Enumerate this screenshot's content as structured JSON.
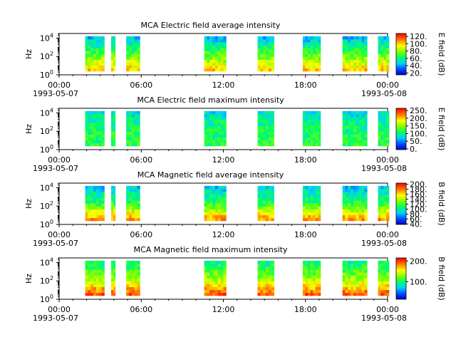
{
  "chart_data": [
    {
      "type": "heatmap",
      "title": "MCA  Electric field average intensity",
      "ylabel": "Hz",
      "colorbar_label": "E field (dB)",
      "colorbar_ticks": [
        "20.",
        "40.",
        "60.",
        "80.",
        "100.",
        "120."
      ],
      "colorbar_range": [
        15,
        128
      ],
      "xticks": [
        [
          "00:00",
          "1993-05-07"
        ],
        [
          "06:00",
          ""
        ],
        [
          "12:00",
          ""
        ],
        [
          "18:00",
          ""
        ],
        [
          "00:00",
          "1993-05-08"
        ]
      ],
      "ytick_exponents": [
        "0",
        "2",
        "4"
      ],
      "x_range_hours": [
        0,
        24
      ],
      "y_range_log10_hz": [
        0,
        4.5
      ],
      "data_intervals_hours": [
        [
          1.9,
          3.3
        ],
        [
          3.8,
          4.1
        ],
        [
          4.9,
          5.9
        ],
        [
          10.6,
          12.2
        ],
        [
          14.5,
          15.7
        ],
        [
          17.8,
          19.1
        ],
        [
          20.7,
          22.5
        ],
        [
          23.3,
          24.1
        ]
      ],
      "freq_range_log10_hz": [
        0.4,
        4.2
      ],
      "intensity_profile": {
        "low_freq": 100,
        "mid_freq": 72,
        "high_freq": 45
      }
    },
    {
      "type": "heatmap",
      "title": "MCA  Electric field maximum intensity",
      "ylabel": "Hz",
      "colorbar_label": "E field (dB)",
      "colorbar_ticks": [
        "0.",
        "50.",
        "100.",
        "150.",
        "200.",
        "250."
      ],
      "colorbar_range": [
        -5,
        265
      ],
      "xticks": [
        [
          "00:00",
          "1993-05-07"
        ],
        [
          "06:00",
          ""
        ],
        [
          "12:00",
          ""
        ],
        [
          "18:00",
          ""
        ],
        [
          "00:00",
          "1993-05-08"
        ]
      ],
      "ytick_exponents": [
        "0",
        "2",
        "4"
      ],
      "x_range_hours": [
        0,
        24
      ],
      "y_range_log10_hz": [
        0,
        4.5
      ],
      "data_intervals_hours": [
        [
          1.9,
          3.3
        ],
        [
          3.8,
          4.1
        ],
        [
          4.9,
          5.9
        ],
        [
          10.6,
          12.2
        ],
        [
          14.5,
          15.7
        ],
        [
          17.8,
          19.1
        ],
        [
          20.7,
          22.5
        ],
        [
          23.3,
          24.1
        ]
      ],
      "freq_range_log10_hz": [
        0.4,
        4.2
      ],
      "intensity_profile": {
        "low_freq": 120,
        "mid_freq": 110,
        "high_freq": 80
      }
    },
    {
      "type": "heatmap",
      "title": "MCA  Magnetic field average intensity",
      "ylabel": "Hz",
      "colorbar_label": "B field (dB)",
      "colorbar_ticks": [
        "40.",
        "60.",
        "80.",
        "100.",
        "120.",
        "140.",
        "160.",
        "180.",
        "200."
      ],
      "colorbar_range": [
        38,
        205
      ],
      "xticks": [
        [
          "00:00",
          "1993-05-07"
        ],
        [
          "06:00",
          ""
        ],
        [
          "12:00",
          ""
        ],
        [
          "18:00",
          ""
        ],
        [
          "00:00",
          "1993-05-08"
        ]
      ],
      "ytick_exponents": [
        "0",
        "2",
        "4"
      ],
      "x_range_hours": [
        0,
        24
      ],
      "y_range_log10_hz": [
        0,
        4.5
      ],
      "data_intervals_hours": [
        [
          1.9,
          3.3
        ],
        [
          3.8,
          4.1
        ],
        [
          4.9,
          5.9
        ],
        [
          10.6,
          12.2
        ],
        [
          14.5,
          15.7
        ],
        [
          17.8,
          19.1
        ],
        [
          20.7,
          22.5
        ],
        [
          23.3,
          24.1
        ]
      ],
      "freq_range_log10_hz": [
        0.4,
        4.2
      ],
      "intensity_profile": {
        "low_freq": 175,
        "mid_freq": 115,
        "high_freq": 85
      }
    },
    {
      "type": "heatmap",
      "title": "MCA  Magnetic field maximum intensity",
      "ylabel": "Hz",
      "colorbar_label": "B field (dB)",
      "colorbar_ticks": [
        "100.",
        "200."
      ],
      "colorbar_range": [
        15,
        215
      ],
      "xticks": [
        [
          "00:00",
          "1993-05-07"
        ],
        [
          "06:00",
          ""
        ],
        [
          "12:00",
          ""
        ],
        [
          "18:00",
          ""
        ],
        [
          "00:00",
          "1993-05-08"
        ]
      ],
      "ytick_exponents": [
        "0",
        "2",
        "4"
      ],
      "x_range_hours": [
        0,
        24
      ],
      "y_range_log10_hz": [
        0,
        4.5
      ],
      "data_intervals_hours": [
        [
          1.9,
          3.3
        ],
        [
          3.8,
          4.1
        ],
        [
          4.9,
          5.9
        ],
        [
          10.6,
          12.2
        ],
        [
          14.5,
          15.7
        ],
        [
          17.8,
          19.1
        ],
        [
          20.7,
          22.5
        ],
        [
          23.3,
          24.1
        ]
      ],
      "freq_range_log10_hz": [
        0.4,
        4.2
      ],
      "intensity_profile": {
        "low_freq": 195,
        "mid_freq": 130,
        "high_freq": 95
      }
    }
  ]
}
